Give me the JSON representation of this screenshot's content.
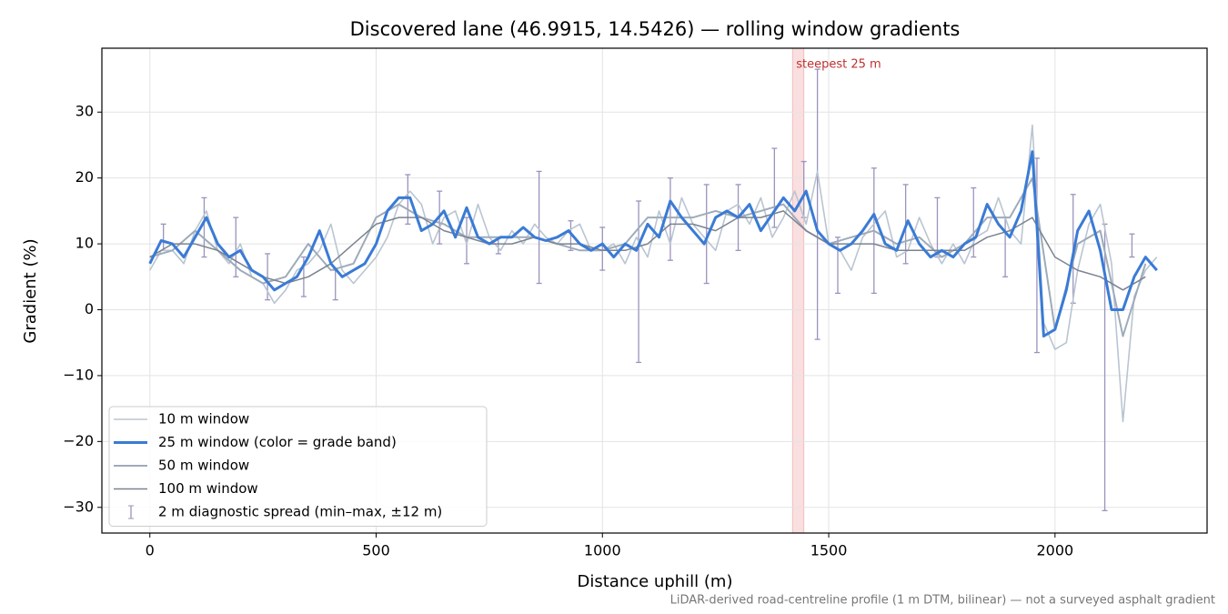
{
  "chart_data": {
    "type": "line",
    "title": "Discovered lane (46.9915, 14.5426) — rolling window gradients",
    "x_label": "Distance uphill (m)",
    "y_label": "Gradient (%)",
    "footnote": "LiDAR-derived road-centreline profile (1 m DTM, bilinear) — not a surveyed asphalt gradient",
    "xlim": [
      -106,
      2336
    ],
    "ylim": [
      -33.9,
      39.7
    ],
    "xticks": [
      0,
      500,
      1000,
      1500,
      2000
    ],
    "yticks": [
      {
        "value": -30,
        "label": "−30"
      },
      {
        "value": -20,
        "label": "−20"
      },
      {
        "value": -10,
        "label": "−10"
      },
      0,
      10,
      20,
      30
    ],
    "grid": true,
    "legend": "lower left",
    "series": [
      {
        "name": "10 m window",
        "color": "#b9c5d1",
        "x": [
          0,
          25,
          50,
          75,
          100,
          125,
          150,
          175,
          200,
          225,
          250,
          275,
          300,
          325,
          350,
          375,
          400,
          425,
          450,
          475,
          500,
          525,
          550,
          575,
          600,
          625,
          650,
          675,
          700,
          725,
          750,
          775,
          800,
          825,
          850,
          875,
          900,
          925,
          950,
          975,
          1000,
          1025,
          1050,
          1075,
          1100,
          1125,
          1150,
          1175,
          1200,
          1225,
          1250,
          1275,
          1300,
          1325,
          1350,
          1375,
          1400,
          1425,
          1450,
          1475,
          1500,
          1525,
          1550,
          1575,
          1600,
          1625,
          1650,
          1675,
          1700,
          1725,
          1750,
          1775,
          1800,
          1825,
          1850,
          1875,
          1900,
          1925,
          1950,
          1975,
          2000,
          2025,
          2050,
          2075,
          2100,
          2125,
          2150,
          2175,
          2200,
          2225
        ],
        "values": [
          6,
          9,
          9,
          7,
          12,
          15,
          9,
          7,
          10,
          5,
          4,
          1,
          3,
          6,
          7,
          9,
          13,
          6,
          4,
          6,
          8,
          11,
          16,
          18,
          16,
          10,
          14,
          15,
          10,
          16,
          11,
          9,
          12,
          10,
          13,
          11,
          10,
          12,
          13,
          9,
          9,
          10,
          7,
          11,
          8,
          15,
          10,
          17,
          13,
          11,
          9,
          15,
          16,
          13,
          17,
          11,
          14,
          18,
          13,
          21,
          10,
          9,
          6,
          11,
          13,
          15,
          8,
          9,
          14,
          10,
          7,
          10,
          7,
          11,
          12,
          17,
          12,
          10,
          28,
          -2,
          -6,
          -5,
          6,
          13,
          16,
          7,
          -17,
          2,
          6,
          8
        ]
      },
      {
        "name": "25 m window (color = grade band)",
        "color": "#3a7bd5",
        "x": [
          0,
          25,
          50,
          75,
          100,
          125,
          150,
          175,
          200,
          225,
          250,
          275,
          300,
          325,
          350,
          375,
          400,
          425,
          450,
          475,
          500,
          525,
          550,
          575,
          600,
          625,
          650,
          675,
          700,
          725,
          750,
          775,
          800,
          825,
          850,
          875,
          900,
          925,
          950,
          975,
          1000,
          1025,
          1050,
          1075,
          1100,
          1125,
          1150,
          1175,
          1200,
          1225,
          1250,
          1275,
          1300,
          1325,
          1350,
          1375,
          1400,
          1425,
          1450,
          1475,
          1500,
          1525,
          1550,
          1575,
          1600,
          1625,
          1650,
          1675,
          1700,
          1725,
          1750,
          1775,
          1800,
          1825,
          1850,
          1875,
          1900,
          1925,
          1950,
          1975,
          2000,
          2025,
          2050,
          2075,
          2100,
          2125,
          2150,
          2175,
          2200,
          2225
        ],
        "values": [
          7,
          10.5,
          10,
          8,
          11,
          14,
          10,
          8,
          9,
          6,
          5,
          3,
          4,
          5,
          8,
          12,
          7,
          5,
          6,
          7,
          10,
          15,
          17,
          17,
          12,
          13,
          15,
          11,
          15.5,
          11,
          10,
          11,
          11,
          12.5,
          11,
          10.5,
          11,
          12,
          10,
          9,
          10,
          8,
          10,
          9,
          13,
          11,
          16.5,
          14,
          12,
          10,
          14,
          15,
          14,
          16,
          12,
          14.5,
          17,
          15,
          18,
          12,
          10,
          9,
          10,
          12,
          14.5,
          10,
          9,
          13.5,
          10,
          8,
          9,
          8,
          10,
          11,
          16,
          13,
          11,
          15,
          24,
          -4,
          -3,
          3,
          12,
          15,
          9,
          0,
          0,
          5,
          8,
          6
        ]
      },
      {
        "name": "50 m window",
        "color": "#9eabba",
        "x": [
          0,
          50,
          100,
          150,
          200,
          250,
          300,
          350,
          400,
          450,
          500,
          550,
          600,
          650,
          700,
          750,
          800,
          850,
          900,
          950,
          1000,
          1050,
          1100,
          1150,
          1200,
          1250,
          1300,
          1350,
          1400,
          1450,
          1500,
          1550,
          1600,
          1650,
          1700,
          1750,
          1800,
          1850,
          1900,
          1950,
          2000,
          2050,
          2100,
          2150,
          2200
        ],
        "values": [
          8,
          9,
          12,
          9,
          6,
          4,
          5,
          10,
          6,
          7,
          14,
          16,
          14,
          13,
          11,
          11,
          11,
          11,
          10,
          9,
          9,
          10,
          14,
          14,
          14,
          15,
          14,
          15,
          16,
          12,
          10,
          11,
          12,
          10,
          11,
          8,
          10,
          14,
          14,
          20,
          -3,
          10,
          12,
          -4,
          7
        ]
      },
      {
        "name": "100 m window",
        "color": "#7b8391",
        "x": [
          0,
          50,
          100,
          150,
          200,
          250,
          300,
          350,
          400,
          450,
          500,
          550,
          600,
          650,
          700,
          750,
          800,
          850,
          900,
          950,
          1000,
          1050,
          1100,
          1150,
          1200,
          1250,
          1300,
          1350,
          1400,
          1450,
          1500,
          1550,
          1600,
          1650,
          1700,
          1750,
          1800,
          1850,
          1900,
          1950,
          2000,
          2050,
          2100,
          2150,
          2200
        ],
        "values": [
          8,
          10,
          10,
          9,
          7,
          5,
          4,
          5,
          7,
          10,
          13,
          14,
          14,
          12,
          11,
          10,
          10,
          11,
          10,
          10,
          9,
          9,
          10,
          13,
          13,
          12,
          14,
          14,
          15,
          12,
          10,
          10,
          10,
          9,
          9,
          9,
          9,
          11,
          12,
          14,
          8,
          6,
          5,
          3,
          5
        ]
      }
    ],
    "error_bars": {
      "name": "2 m diagnostic spread (min–max, ±12 m)",
      "color": "#9b93bd",
      "x": [
        30,
        120,
        190,
        260,
        340,
        410,
        570,
        640,
        700,
        770,
        860,
        930,
        1000,
        1080,
        1150,
        1230,
        1300,
        1380,
        1445,
        1475,
        1520,
        1600,
        1670,
        1740,
        1820,
        1890,
        1960,
        2040,
        2110,
        2170
      ],
      "low": [
        9,
        8,
        5,
        1.5,
        2,
        1.5,
        13,
        10,
        7,
        8.5,
        4,
        9,
        6,
        -8,
        7.5,
        4,
        9,
        12.5,
        14,
        -4.5,
        2.5,
        2.5,
        7,
        8,
        8,
        5,
        -6.5,
        1,
        -30.5,
        8
      ],
      "high": [
        13,
        17,
        14,
        8.5,
        8,
        6,
        20.5,
        18,
        14,
        11,
        21,
        13.5,
        12.5,
        16.5,
        20,
        19,
        19,
        24.5,
        22.5,
        36.5,
        11,
        21.5,
        19,
        17,
        18.5,
        14,
        23,
        17.5,
        13,
        11.5
      ]
    },
    "highlight": {
      "label": "steepest 25 m",
      "span": [
        1420,
        1445
      ],
      "color": "#e05050"
    }
  }
}
